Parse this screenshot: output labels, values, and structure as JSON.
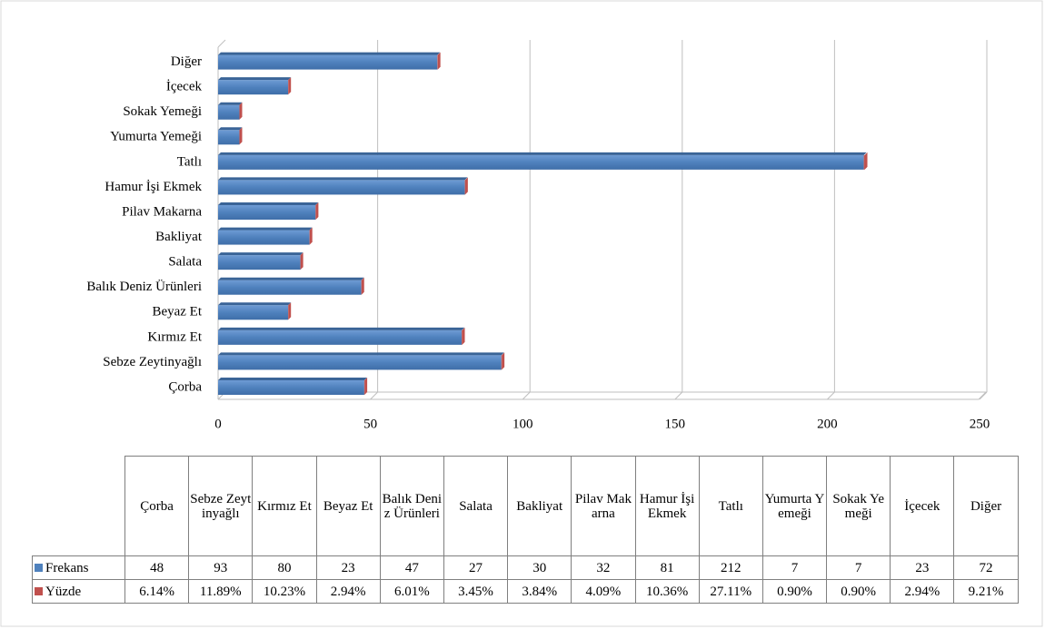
{
  "chart_data": {
    "type": "bar",
    "orientation": "horizontal",
    "stacked": true,
    "categories": [
      "Çorba",
      "Sebze Zeytinyağlı",
      "Kırmız Et",
      "Beyaz Et",
      "Balık Deniz Ürünleri",
      "Salata",
      "Bakliyat",
      "Pilav Makarna",
      "Hamur İşi  Ekmek",
      "Tatlı",
      "Yumurta Yemeği",
      "Sokak Yemeği",
      "İçecek",
      "Diğer"
    ],
    "series": [
      {
        "name": "Frekans",
        "color": "#4f81bd",
        "values": [
          48,
          93,
          80,
          23,
          47,
          27,
          30,
          32,
          81,
          212,
          7,
          7,
          23,
          72
        ]
      },
      {
        "name": "Yüzde",
        "color": "#c0504d",
        "values": [
          0.0614,
          0.1189,
          0.1023,
          0.0294,
          0.0601,
          0.0345,
          0.0384,
          0.0409,
          0.1036,
          0.2711,
          0.009,
          0.009,
          0.0294,
          0.0921
        ],
        "value_labels": [
          "6.14%",
          "11.89%",
          "10.23%",
          "2.94%",
          "6.01%",
          "3.45%",
          "3.84%",
          "4.09%",
          "10.36%",
          "27.11%",
          "0.90%",
          "0.90%",
          "2.94%",
          "9.21%"
        ]
      }
    ],
    "xlim": [
      0,
      250
    ],
    "xticks": [
      0,
      50,
      100,
      150,
      200,
      250
    ],
    "grid": true
  }
}
